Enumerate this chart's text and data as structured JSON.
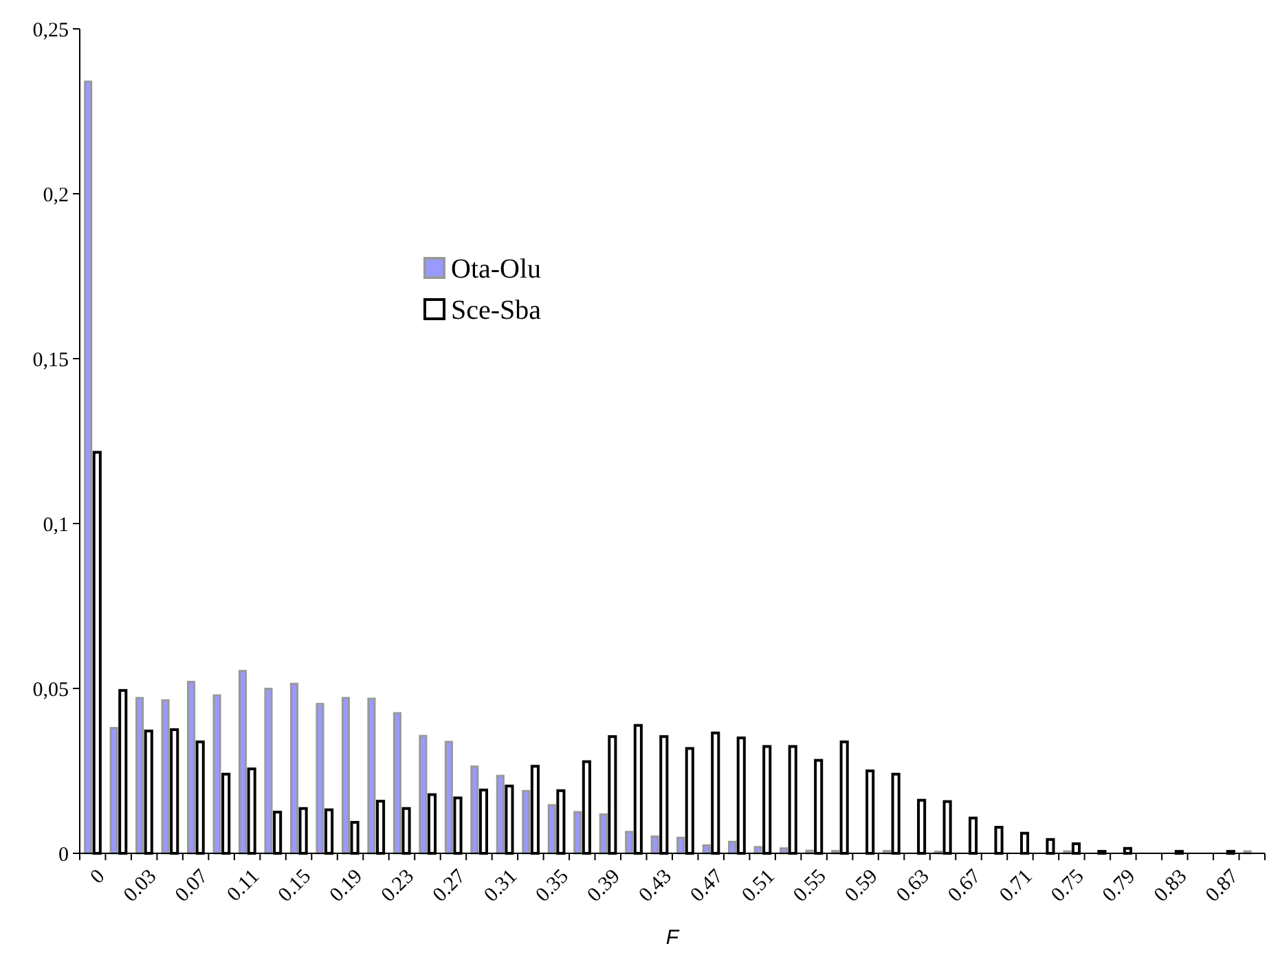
{
  "chart_data": {
    "type": "bar",
    "xlabel": "F",
    "categories": [
      "0",
      null,
      "0.03",
      null,
      "0.07",
      null,
      "0.11",
      null,
      "0.15",
      null,
      "0.19",
      null,
      "0.23",
      null,
      "0.27",
      null,
      "0.31",
      null,
      "0.35",
      null,
      "0.39",
      null,
      "0.43",
      null,
      "0.47",
      null,
      "0.51",
      null,
      "0.55",
      null,
      "0.59",
      null,
      "0.63",
      null,
      "0.67",
      null,
      "0.71",
      null,
      "0.75",
      null,
      "0.79",
      null,
      "0.83",
      null,
      "0.87",
      null
    ],
    "series": [
      {
        "name": "Ota-Olu",
        "color": "#9999ff",
        "values": [
          0.234,
          0.038,
          0.0471,
          0.0464,
          0.052,
          0.0479,
          0.0553,
          0.0499,
          0.0514,
          0.0453,
          0.0471,
          0.0469,
          0.0425,
          0.0356,
          0.0338,
          0.0263,
          0.0235,
          0.0189,
          0.0146,
          0.0125,
          0.0118,
          0.0065,
          0.0051,
          0.0047,
          0.0024,
          0.0035,
          0.0019,
          0.0015,
          0.0008,
          0.0007,
          0,
          0.0007,
          0,
          0.0005,
          0,
          0,
          0,
          0,
          0.0006,
          0,
          0,
          0,
          0,
          0,
          0,
          0.0006
        ]
      },
      {
        "name": "Sce-Sba",
        "color": "#ffffff",
        "values": [
          0.1216,
          0.0494,
          0.0371,
          0.0375,
          0.0338,
          0.024,
          0.0256,
          0.0125,
          0.0136,
          0.0132,
          0.0094,
          0.0158,
          0.0136,
          0.0178,
          0.0168,
          0.0192,
          0.0204,
          0.0264,
          0.019,
          0.0278,
          0.0354,
          0.0388,
          0.0354,
          0.0318,
          0.0365,
          0.035,
          0.0324,
          0.0324,
          0.0282,
          0.0338,
          0.025,
          0.024,
          0.0161,
          0.0157,
          0.0107,
          0.0079,
          0.0061,
          0.0042,
          0.0029,
          0.0006,
          0.0015,
          0,
          0.0006,
          0,
          0.0006,
          0
        ]
      }
    ],
    "ylim": [
      0,
      0.25
    ],
    "yticks": [
      0,
      {
        "value": 0.05,
        "label": "0,05"
      },
      {
        "value": 0.1,
        "label": "0,1"
      },
      {
        "value": 0.15,
        "label": "0,15"
      },
      {
        "value": 0.2,
        "label": "0,2"
      },
      {
        "value": 0.25,
        "label": "0,25"
      }
    ],
    "grid": false,
    "legend": "top"
  }
}
